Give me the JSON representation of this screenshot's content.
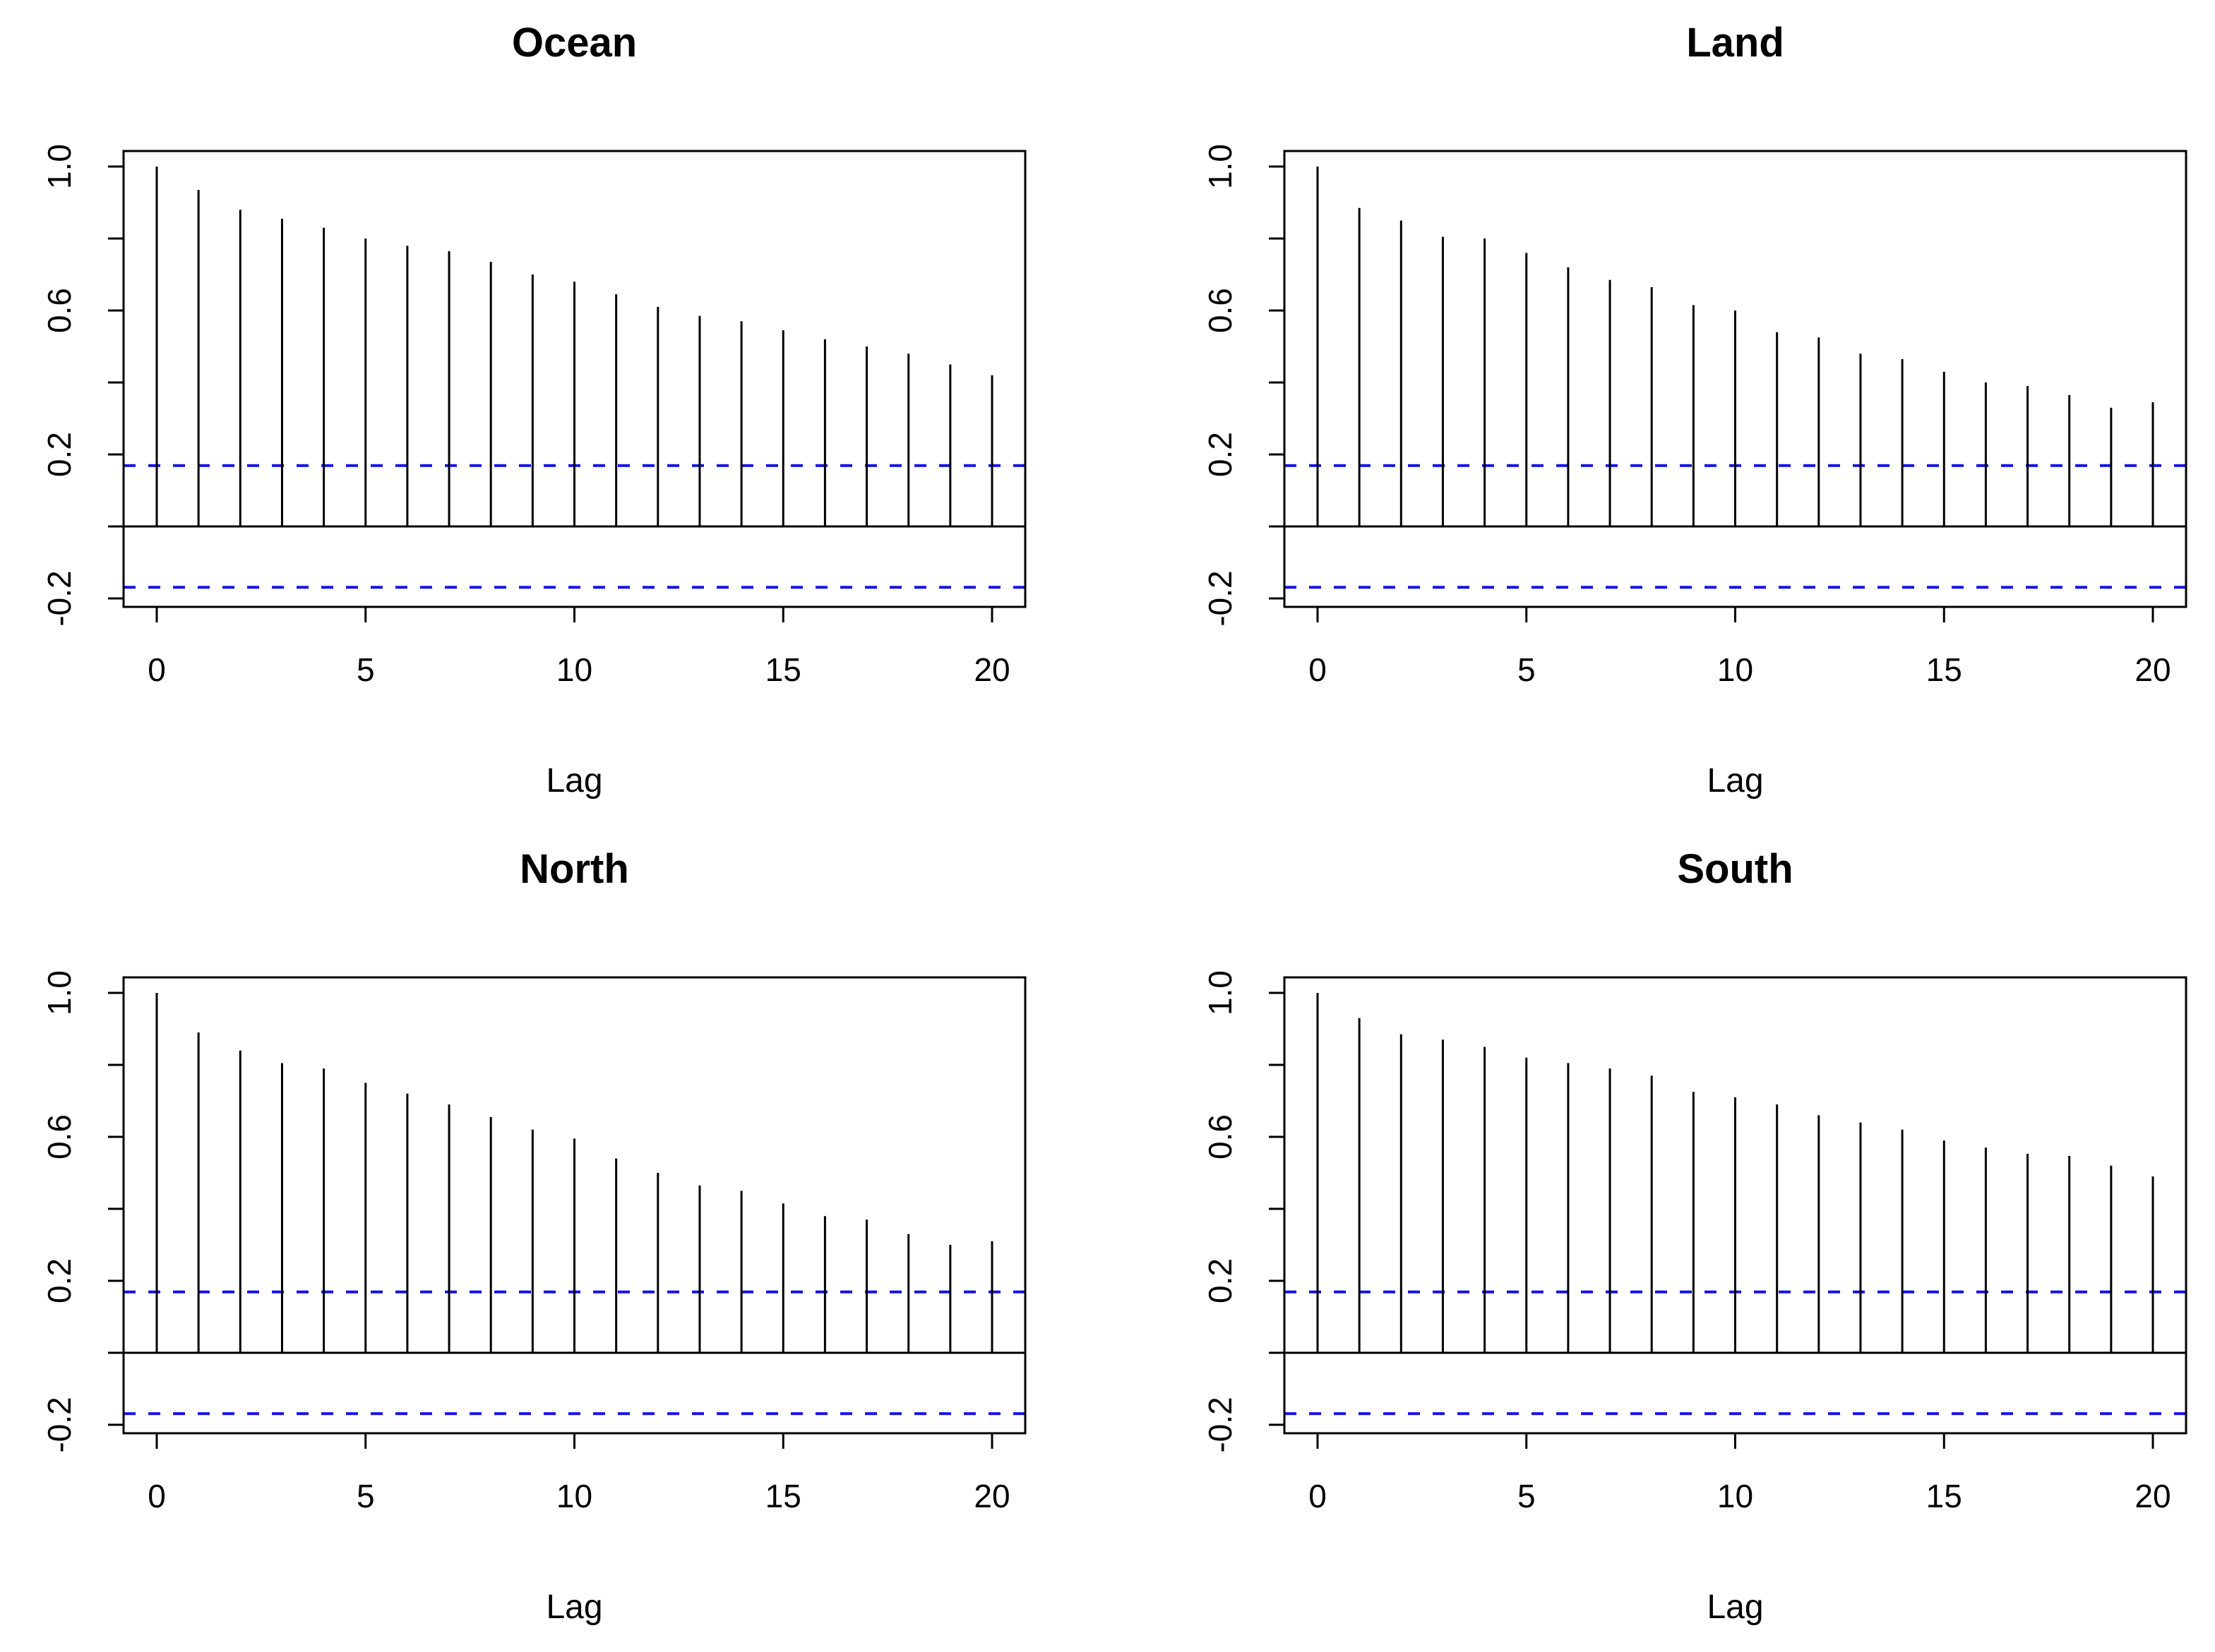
{
  "figure": {
    "background": "#ffffff",
    "panel_titles": [
      "Ocean",
      "Land",
      "North",
      "South"
    ]
  },
  "style": {
    "bar_color": "#000000",
    "axis_color": "#000000",
    "conf_line_color": "#1212e8",
    "conf_line_style": "dashed",
    "title_weight": "bold"
  },
  "chart_data": {
    "type": "bar",
    "subtype": "autocorrelation-stem-plot",
    "layout_grid": "2x2",
    "xlabel": "Lag",
    "ylabel": "",
    "x": [
      0,
      1,
      2,
      3,
      4,
      5,
      6,
      7,
      8,
      9,
      10,
      11,
      12,
      13,
      14,
      15,
      16,
      17,
      18,
      19,
      20
    ],
    "x_ticks": [
      0,
      5,
      10,
      15,
      20
    ],
    "y_ticks": [
      -0.2,
      0,
      0.2,
      0.4,
      0.6,
      0.8,
      1.0
    ],
    "y_labeled_ticks": [
      {
        "value": 1.0,
        "label": "1.0"
      },
      {
        "value": 0.6,
        "label": "0.6"
      },
      {
        "value": 0.2,
        "label": "0.2"
      },
      {
        "value": -0.2,
        "label": "-0.2"
      }
    ],
    "xlim": [
      -0.78,
      20.8
    ],
    "ylim": [
      -0.224,
      1.043
    ],
    "confidence_bounds": [
      0.169,
      -0.169
    ],
    "zero_line": 0,
    "grid": false,
    "legend": "none",
    "series": [
      {
        "name": "Ocean",
        "values": [
          1.0,
          0.935,
          0.88,
          0.855,
          0.83,
          0.8,
          0.78,
          0.765,
          0.735,
          0.7,
          0.68,
          0.645,
          0.61,
          0.585,
          0.57,
          0.545,
          0.52,
          0.5,
          0.48,
          0.45,
          0.42
        ]
      },
      {
        "name": "Land",
        "values": [
          1.0,
          0.885,
          0.85,
          0.805,
          0.8,
          0.76,
          0.72,
          0.685,
          0.665,
          0.615,
          0.6,
          0.54,
          0.525,
          0.48,
          0.465,
          0.43,
          0.4,
          0.39,
          0.365,
          0.33,
          0.345
        ]
      },
      {
        "name": "North",
        "values": [
          1.0,
          0.89,
          0.84,
          0.805,
          0.79,
          0.75,
          0.72,
          0.69,
          0.655,
          0.62,
          0.595,
          0.54,
          0.5,
          0.465,
          0.45,
          0.415,
          0.38,
          0.37,
          0.33,
          0.3,
          0.31
        ]
      },
      {
        "name": "South",
        "values": [
          1.0,
          0.93,
          0.885,
          0.87,
          0.85,
          0.82,
          0.805,
          0.79,
          0.77,
          0.725,
          0.71,
          0.69,
          0.66,
          0.64,
          0.62,
          0.59,
          0.57,
          0.553,
          0.547,
          0.52,
          0.49
        ]
      }
    ]
  }
}
